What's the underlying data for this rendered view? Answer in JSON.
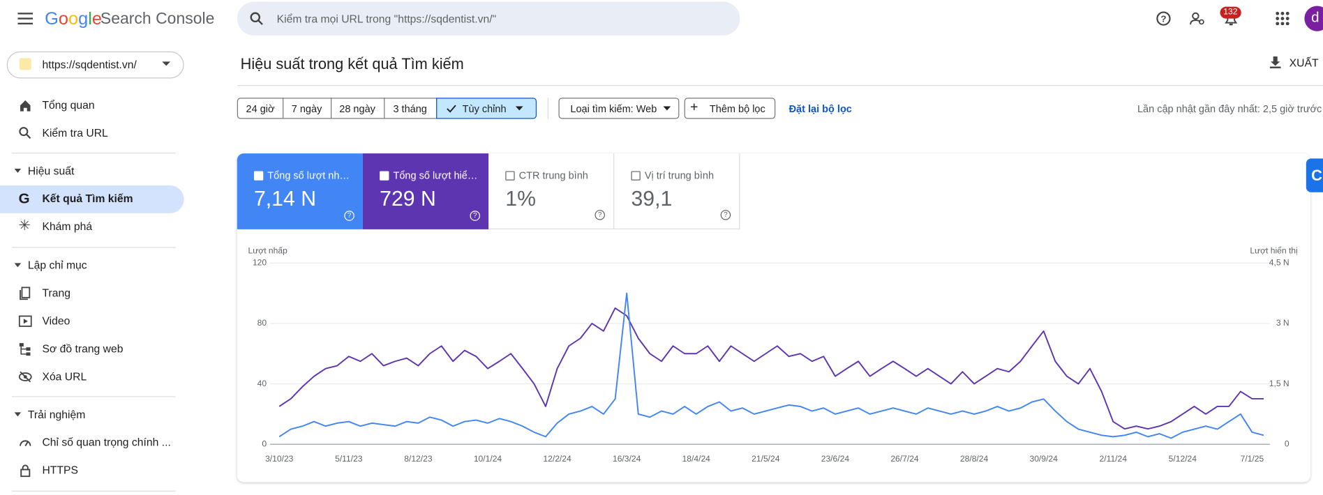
{
  "header": {
    "logo": "Google",
    "product": "Search Console",
    "search_placeholder": "Kiểm tra mọi URL trong \"https://sqdentist.vn/\"",
    "notification_count": "132",
    "avatar": "d"
  },
  "property": "https://sqdentist.vn/",
  "nav": {
    "items": [
      "Tổng quan",
      "Kiểm tra URL"
    ],
    "sections": [
      {
        "heading": "Hiệu suất",
        "items": [
          "Kết quả Tìm kiếm",
          "Khám phá"
        ]
      },
      {
        "heading": "Lập chỉ mục",
        "items": [
          "Trang",
          "Video",
          "Sơ đồ trang web",
          "Xóa URL"
        ]
      },
      {
        "heading": "Trải nghiệm",
        "items": [
          "Chỉ số quan trọng chính ...",
          "HTTPS"
        ]
      }
    ]
  },
  "page": {
    "title": "Hiệu suất trong kết quả Tìm kiếm",
    "export": "XUẤT"
  },
  "filters": {
    "date_ranges": [
      "24 giờ",
      "7 ngày",
      "28 ngày",
      "3 tháng",
      "Tùy chỉnh"
    ],
    "search_type": "Loại tìm kiếm: Web",
    "add_filter": "Thêm bộ lọc",
    "reset": "Đặt lại bộ lọc",
    "last_updated": "Lần cập nhật gần đây nhất: 2,5 giờ trước"
  },
  "metrics": [
    {
      "label": "Tổng số lượt nh…",
      "value": "7,14 N"
    },
    {
      "label": "Tổng số lượt hiể…",
      "value": "729 N"
    },
    {
      "label": "CTR trung bình",
      "value": "1%"
    },
    {
      "label": "Vị trí trung bình",
      "value": "39,1"
    }
  ],
  "chart_data": {
    "type": "line",
    "categories": [
      "3/10/23",
      null,
      null,
      null,
      null,
      null,
      "5/11/23",
      null,
      null,
      null,
      null,
      null,
      "8/12/23",
      null,
      null,
      null,
      null,
      null,
      "10/1/24",
      null,
      null,
      null,
      null,
      null,
      "12/2/24",
      null,
      null,
      null,
      null,
      null,
      "16/3/24",
      null,
      null,
      null,
      null,
      null,
      "18/4/24",
      null,
      null,
      null,
      null,
      null,
      "21/5/24",
      null,
      null,
      null,
      null,
      null,
      "23/6/24",
      null,
      null,
      null,
      null,
      null,
      "26/7/24",
      null,
      null,
      null,
      null,
      null,
      "28/8/24",
      null,
      null,
      null,
      null,
      null,
      "30/9/24",
      null,
      null,
      null,
      null,
      null,
      "2/11/24",
      null,
      null,
      null,
      null,
      null,
      "5/12/24",
      null,
      null,
      null,
      null,
      null,
      "7/1/25",
      null
    ],
    "series": [
      {
        "name": "Lượt nhấp",
        "color": "#4285f4",
        "values": [
          5,
          10,
          12,
          15,
          12,
          14,
          15,
          12,
          14,
          13,
          12,
          15,
          14,
          18,
          16,
          12,
          15,
          16,
          14,
          17,
          15,
          12,
          8,
          5,
          14,
          20,
          22,
          25,
          20,
          30,
          100,
          20,
          18,
          22,
          20,
          25,
          20,
          25,
          28,
          22,
          24,
          20,
          22,
          24,
          26,
          25,
          22,
          24,
          20,
          22,
          24,
          20,
          22,
          24,
          22,
          20,
          24,
          22,
          20,
          22,
          20,
          22,
          25,
          22,
          24,
          28,
          30,
          22,
          15,
          10,
          8,
          6,
          5,
          6,
          8,
          5,
          7,
          4,
          8,
          10,
          12,
          10,
          15,
          20,
          8,
          6
        ]
      },
      {
        "name": "Lượt hiển thị",
        "color": "#5e35b1",
        "axis": "y2",
        "values": [
          940,
          1130,
          1430,
          1690,
          1880,
          1950,
          2180,
          2060,
          2250,
          1950,
          2060,
          2140,
          1950,
          2250,
          2440,
          2060,
          2330,
          2180,
          1880,
          2060,
          2250,
          1880,
          1500,
          940,
          1880,
          2440,
          2630,
          3000,
          2810,
          3380,
          3190,
          2630,
          2250,
          2060,
          2440,
          2250,
          2250,
          2440,
          2060,
          2440,
          2250,
          2060,
          2250,
          2440,
          2180,
          2250,
          2060,
          2180,
          1690,
          1880,
          2060,
          1690,
          1880,
          2060,
          1880,
          1690,
          1880,
          1690,
          1500,
          1800,
          1500,
          1690,
          1880,
          1800,
          2060,
          2440,
          2810,
          2060,
          1690,
          1500,
          1880,
          1310,
          560,
          380,
          450,
          380,
          450,
          560,
          750,
          940,
          750,
          940,
          940,
          1310,
          1130,
          1130
        ]
      }
    ],
    "ylim": [
      0,
      120
    ],
    "yticks": [
      0,
      40,
      80,
      120
    ],
    "y2lim": [
      0,
      4500
    ],
    "y2ticks": [
      0,
      {
        "value": 1500,
        "label": "1,5 N"
      },
      {
        "value": 3000,
        "label": "3 N"
      },
      {
        "value": 4500,
        "label": "4,5 N"
      }
    ],
    "grid": true
  }
}
